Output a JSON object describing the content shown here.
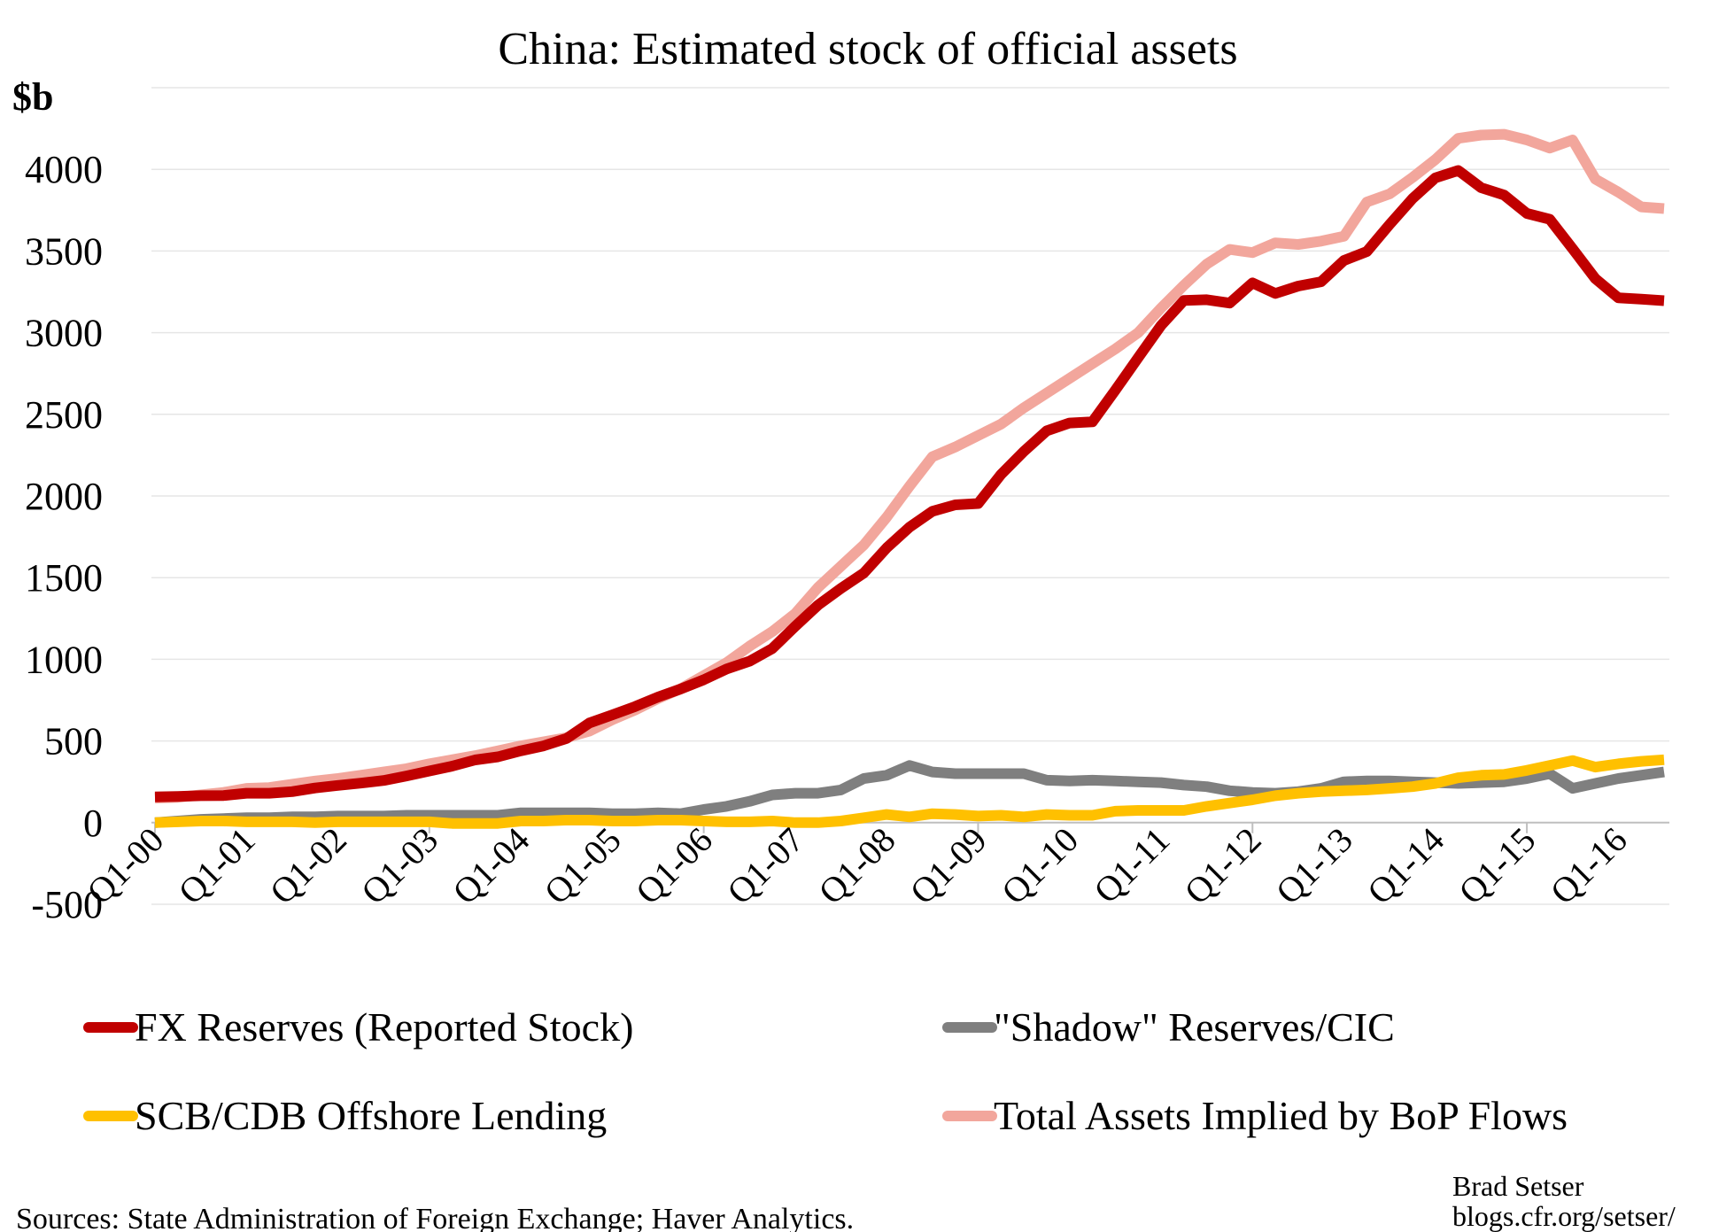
{
  "chart_data": {
    "type": "line",
    "title": "China: Estimated stock of official assets",
    "y_label": "$b",
    "categories": [
      "Q1-00",
      null,
      null,
      null,
      "Q1-01",
      null,
      null,
      null,
      "Q1-02",
      null,
      null,
      null,
      "Q1-03",
      null,
      null,
      null,
      "Q1-04",
      null,
      null,
      null,
      "Q1-05",
      null,
      null,
      null,
      "Q1-06",
      null,
      null,
      null,
      "Q1-07",
      null,
      null,
      null,
      "Q1-08",
      null,
      null,
      null,
      "Q1-09",
      null,
      null,
      null,
      "Q1-10",
      null,
      null,
      null,
      "Q1-11",
      null,
      null,
      null,
      "Q1-12",
      null,
      null,
      null,
      "Q1-13",
      null,
      null,
      null,
      "Q1-14",
      null,
      null,
      null,
      "Q1-15",
      null,
      null,
      null,
      "Q1-16",
      null,
      null
    ],
    "series": [
      {
        "name": "FX Reserves (Reported Stock)",
        "color": "#c00000",
        "values": [
          157,
          160,
          165,
          166,
          180,
          180,
          190,
          212,
          228,
          242,
          258,
          286,
          316,
          346,
          384,
          403,
          440,
          470,
          515,
          610,
          660,
          711,
          769,
          819,
          875,
          941,
          988,
          1066,
          1202,
          1332,
          1434,
          1528,
          1682,
          1809,
          1906,
          1946,
          1954,
          2132,
          2273,
          2399,
          2447,
          2454,
          2648,
          2847,
          3044,
          3197,
          3202,
          3181,
          3305,
          3240,
          3285,
          3312,
          3442,
          3497,
          3663,
          3821,
          3948,
          3993,
          3888,
          3843,
          3730,
          3694,
          3514,
          3330,
          3213,
          3205,
          3196
        ]
      },
      {
        "name": "\"Shadow\" Reserves/CIC",
        "color": "#7f7f7f",
        "values": [
          0,
          10,
          20,
          25,
          30,
          30,
          35,
          35,
          40,
          40,
          40,
          45,
          45,
          45,
          45,
          45,
          60,
          60,
          60,
          60,
          55,
          55,
          60,
          55,
          80,
          100,
          130,
          170,
          180,
          180,
          200,
          270,
          290,
          350,
          310,
          300,
          300,
          300,
          300,
          260,
          255,
          260,
          255,
          250,
          245,
          230,
          220,
          195,
          185,
          180,
          190,
          210,
          250,
          255,
          255,
          250,
          245,
          240,
          245,
          250,
          270,
          300,
          210,
          240,
          270,
          290,
          310
        ]
      },
      {
        "name": "SCB/CDB Offshore Lending",
        "color": "#ffc000",
        "values": [
          0,
          5,
          10,
          10,
          5,
          5,
          5,
          0,
          5,
          5,
          5,
          5,
          5,
          -5,
          -5,
          -5,
          10,
          10,
          15,
          15,
          10,
          10,
          15,
          15,
          10,
          5,
          5,
          10,
          0,
          0,
          10,
          30,
          50,
          35,
          55,
          50,
          40,
          45,
          35,
          50,
          45,
          45,
          70,
          75,
          75,
          75,
          100,
          120,
          140,
          165,
          180,
          190,
          195,
          200,
          210,
          220,
          240,
          275,
          290,
          295,
          320,
          350,
          380,
          340,
          360,
          375,
          385
        ]
      },
      {
        "name": "Total Assets Implied by BoP Flows",
        "color": "#f2a69c",
        "values": [
          150,
          155,
          170,
          185,
          210,
          215,
          235,
          255,
          270,
          290,
          310,
          330,
          360,
          385,
          410,
          440,
          470,
          495,
          520,
          560,
          630,
          690,
          760,
          820,
          900,
          980,
          1080,
          1170,
          1280,
          1440,
          1570,
          1700,
          1870,
          2060,
          2240,
          2300,
          2370,
          2440,
          2540,
          2630,
          2720,
          2810,
          2900,
          3000,
          3150,
          3290,
          3420,
          3510,
          3490,
          3550,
          3540,
          3560,
          3590,
          3800,
          3850,
          3950,
          4060,
          4190,
          4210,
          4215,
          4180,
          4130,
          4180,
          3940,
          3860,
          3770,
          3760
        ]
      }
    ],
    "ylim": [
      -500,
      4500
    ],
    "yticks": [
      -500,
      0,
      500,
      1000,
      1500,
      2000,
      2500,
      3000,
      3500,
      4000
    ],
    "grid": true,
    "source": "Sources: State Administration of Foreign Exchange; Haver Analytics.",
    "author": "Brad Setser",
    "website": "blogs.cfr.org/setser/"
  }
}
